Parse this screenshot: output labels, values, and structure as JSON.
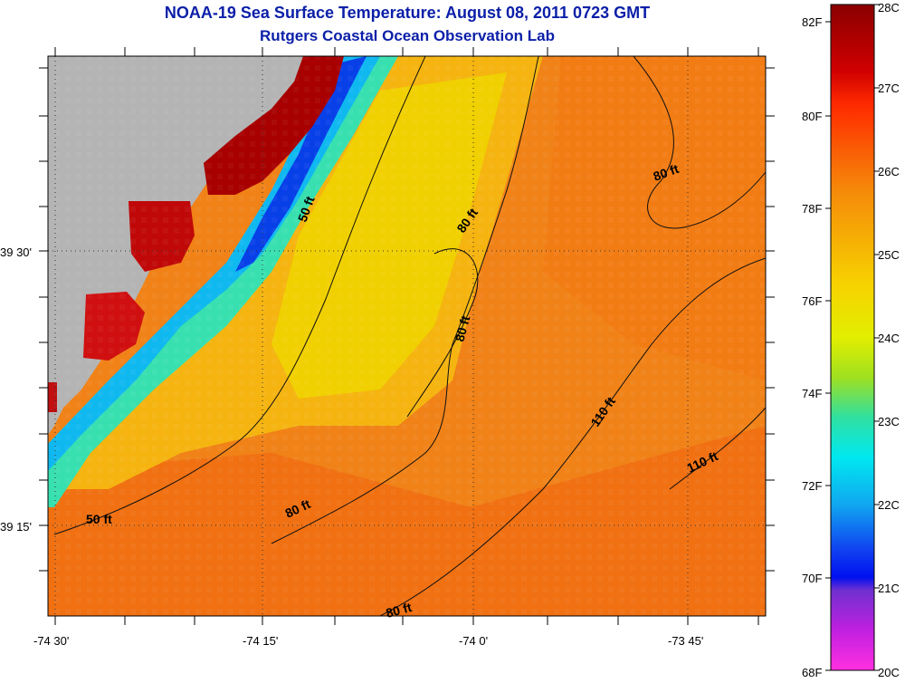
{
  "title": "NOAA-19 Sea Surface Temperature:  August 08, 2011 0723 GMT",
  "subtitle": "Rutgers Coastal Ocean Observation Lab",
  "axes": {
    "lon_ticks": [
      "-74 30'",
      "-74 15'",
      "-74 0'",
      "-73 45'"
    ],
    "lat_ticks": [
      "39 30'",
      "39 15'"
    ]
  },
  "depth_contours": [
    {
      "label": "50 ft"
    },
    {
      "label": "50 ft"
    },
    {
      "label": "80 ft"
    },
    {
      "label": "80 ft"
    },
    {
      "label": "80 ft"
    },
    {
      "label": "80 ft"
    },
    {
      "label": "80 ft"
    },
    {
      "label": "110 ft"
    },
    {
      "label": "110 ft"
    }
  ],
  "colorbar": {
    "fahrenheit": [
      "82F",
      "80F",
      "78F",
      "76F",
      "74F",
      "72F",
      "70F",
      "68F"
    ],
    "celsius": [
      "28C",
      "27C",
      "26C",
      "25C",
      "24C",
      "23C",
      "22C",
      "21C",
      "20C"
    ],
    "min_c": 20,
    "max_c": 28
  },
  "colors": {
    "title": "#0b1fa8",
    "land": "#b4b4b4",
    "warm": "#f07a10",
    "hot": "#b00000",
    "mid": "#f0c800",
    "cool": "#00c8f0",
    "cold": "#0030e0"
  }
}
